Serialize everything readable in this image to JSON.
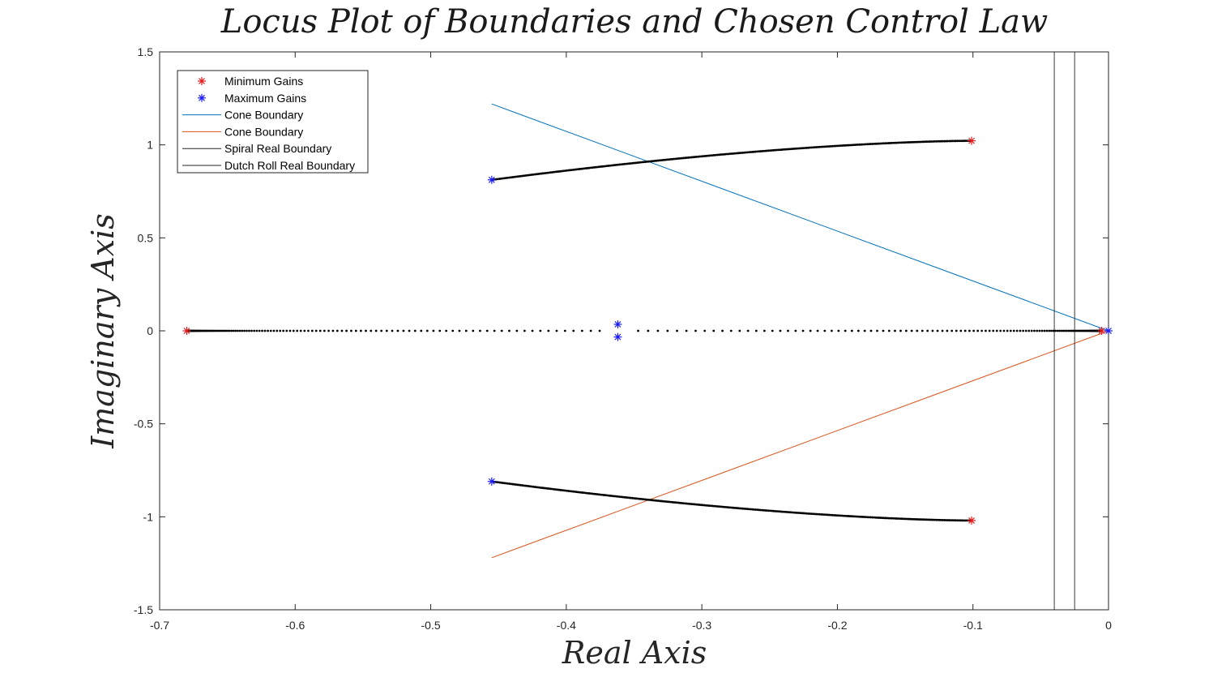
{
  "chart_data": {
    "type": "scatter",
    "title": "Locus Plot of Boundaries and Chosen Control Law",
    "xlabel": "Real Axis",
    "ylabel": "Imaginary Axis",
    "xlim": [
      -0.7,
      0
    ],
    "ylim": [
      -1.5,
      1.5
    ],
    "xticks": [
      -0.7,
      -0.6,
      -0.5,
      -0.4,
      -0.3,
      -0.2,
      -0.1,
      0
    ],
    "yticks": [
      -1.5,
      -1,
      -0.5,
      0,
      0.5,
      1,
      1.5
    ],
    "xtick_labels": [
      "-0.7",
      "-0.6",
      "-0.5",
      "-0.4",
      "-0.3",
      "-0.2",
      "-0.1",
      "0"
    ],
    "ytick_labels": [
      "-1.5",
      "-1",
      "-0.5",
      "0",
      "0.5",
      "1",
      "1.5"
    ],
    "grid": false,
    "legend_position": "top-left",
    "colors": {
      "min_gain": "#e41a1c",
      "max_gain": "#1a1aff",
      "cone_upper": "#0072bd",
      "cone_lower": "#d95319",
      "boundary": "#262626",
      "locus": "#000000"
    },
    "legend": [
      {
        "label": "Minimum Gains",
        "kind": "marker",
        "color": "#e41a1c"
      },
      {
        "label": "Maximum Gains",
        "kind": "marker",
        "color": "#1a1aff"
      },
      {
        "label": "Cone Boundary",
        "kind": "line",
        "color": "#0072bd"
      },
      {
        "label": "Cone Boundary",
        "kind": "line",
        "color": "#d95319"
      },
      {
        "label": "Spiral Real Boundary",
        "kind": "line",
        "color": "#262626"
      },
      {
        "label": "Dutch Roll Real Boundary",
        "kind": "line",
        "color": "#262626"
      }
    ],
    "series": [
      {
        "name": "Minimum Gains",
        "type": "marker",
        "points": [
          [
            -0.68,
            0
          ],
          [
            -0.101,
            1.022
          ],
          [
            -0.101,
            -1.02
          ],
          [
            -0.005,
            0
          ]
        ]
      },
      {
        "name": "Maximum Gains",
        "type": "marker",
        "points": [
          [
            -0.455,
            0.812
          ],
          [
            -0.455,
            -0.81
          ],
          [
            -0.362,
            0.035
          ],
          [
            -0.362,
            -0.033
          ],
          [
            0,
            0
          ]
        ]
      },
      {
        "name": "Cone Boundary",
        "type": "line",
        "points": [
          [
            -0.455,
            1.22
          ],
          [
            0,
            0
          ]
        ]
      },
      {
        "name": "Cone Boundary",
        "type": "line",
        "points": [
          [
            -0.455,
            -1.22
          ],
          [
            0,
            0
          ]
        ]
      },
      {
        "name": "Spiral Real Boundary",
        "type": "line",
        "points": [
          [
            -0.04,
            -1.5
          ],
          [
            -0.04,
            1.5
          ]
        ]
      },
      {
        "name": "Dutch Roll Real Boundary",
        "type": "line",
        "points": [
          [
            -0.025,
            -1.5
          ],
          [
            -0.025,
            1.5
          ]
        ]
      }
    ],
    "locus_branches": [
      {
        "from": [
          -0.455,
          0.812
        ],
        "to": [
          -0.101,
          1.022
        ],
        "curve": "concave",
        "samples": 300
      },
      {
        "from": [
          -0.455,
          -0.81
        ],
        "to": [
          -0.101,
          -1.02
        ],
        "curve": "concave",
        "samples": 300
      },
      {
        "from": [
          -0.68,
          0
        ],
        "to": [
          -0.362,
          0
        ],
        "curve": "real-axis",
        "samples": 150
      },
      {
        "from": [
          -0.005,
          0
        ],
        "to": [
          -0.362,
          0
        ],
        "curve": "real-axis",
        "samples": 150
      }
    ]
  }
}
